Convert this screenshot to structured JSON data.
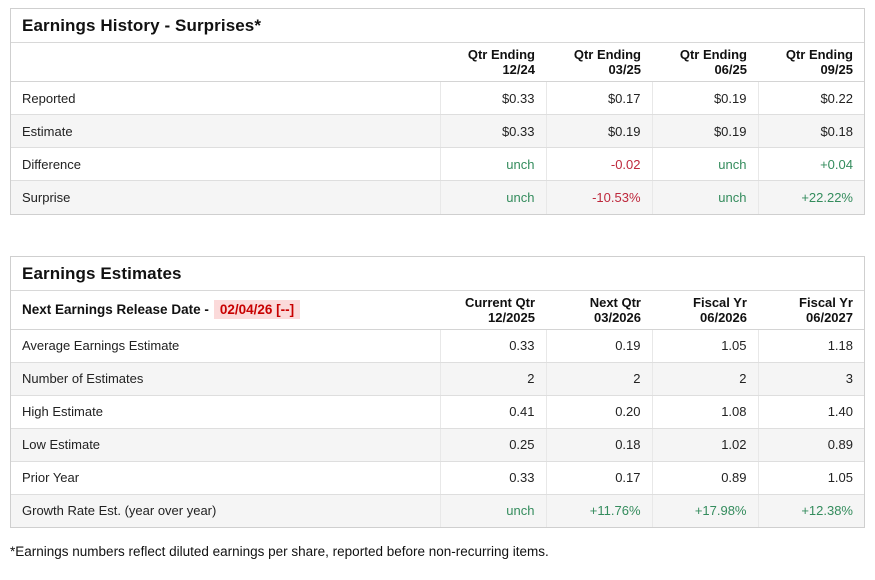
{
  "colors": {
    "green": "#348c5d",
    "red": "#be283c",
    "date_red": "#c80000",
    "date_bg": "#fbdada"
  },
  "tables": [
    {
      "title": "Earnings History - Surprises*",
      "columns": [
        [
          "Qtr Ending",
          "12/24"
        ],
        [
          "Qtr Ending",
          "03/25"
        ],
        [
          "Qtr Ending",
          "06/25"
        ],
        [
          "Qtr Ending",
          "09/25"
        ]
      ],
      "rows": [
        {
          "label": "Reported",
          "values": [
            {
              "text": "$0.33"
            },
            {
              "text": "$0.17"
            },
            {
              "text": "$0.19"
            },
            {
              "text": "$0.22"
            }
          ]
        },
        {
          "label": "Estimate",
          "values": [
            {
              "text": "$0.33"
            },
            {
              "text": "$0.19"
            },
            {
              "text": "$0.19"
            },
            {
              "text": "$0.18"
            }
          ]
        },
        {
          "label": "Difference",
          "values": [
            {
              "text": "unch",
              "tone": "green"
            },
            {
              "text": "-0.02",
              "tone": "red"
            },
            {
              "text": "unch",
              "tone": "green"
            },
            {
              "text": "+0.04",
              "tone": "green"
            }
          ]
        },
        {
          "label": "Surprise",
          "values": [
            {
              "text": "unch",
              "tone": "green"
            },
            {
              "text": "-10.53%",
              "tone": "red"
            },
            {
              "text": "unch",
              "tone": "green"
            },
            {
              "text": "+22.22%",
              "tone": "green"
            }
          ]
        }
      ]
    },
    {
      "title": "Earnings Estimates",
      "release": {
        "label": "Next Earnings Release Date -",
        "date": "02/04/26 [--]"
      },
      "columns": [
        [
          "Current Qtr",
          "12/2025"
        ],
        [
          "Next Qtr",
          "03/2026"
        ],
        [
          "Fiscal Yr",
          "06/2026"
        ],
        [
          "Fiscal Yr",
          "06/2027"
        ]
      ],
      "rows": [
        {
          "label": "Average Earnings Estimate",
          "values": [
            {
              "text": "0.33"
            },
            {
              "text": "0.19"
            },
            {
              "text": "1.05"
            },
            {
              "text": "1.18"
            }
          ]
        },
        {
          "label": "Number of Estimates",
          "values": [
            {
              "text": "2"
            },
            {
              "text": "2"
            },
            {
              "text": "2"
            },
            {
              "text": "3"
            }
          ]
        },
        {
          "label": "High Estimate",
          "values": [
            {
              "text": "0.41"
            },
            {
              "text": "0.20"
            },
            {
              "text": "1.08"
            },
            {
              "text": "1.40"
            }
          ]
        },
        {
          "label": "Low Estimate",
          "values": [
            {
              "text": "0.25"
            },
            {
              "text": "0.18"
            },
            {
              "text": "1.02"
            },
            {
              "text": "0.89"
            }
          ]
        },
        {
          "label": "Prior Year",
          "values": [
            {
              "text": "0.33"
            },
            {
              "text": "0.17"
            },
            {
              "text": "0.89"
            },
            {
              "text": "1.05"
            }
          ]
        },
        {
          "label": "Growth Rate Est. (year over year)",
          "values": [
            {
              "text": "unch",
              "tone": "green"
            },
            {
              "text": "+11.76%",
              "tone": "green"
            },
            {
              "text": "+17.98%",
              "tone": "green"
            },
            {
              "text": "+12.38%",
              "tone": "green"
            }
          ]
        }
      ]
    }
  ],
  "footnote": "*Earnings numbers reflect diluted earnings per share, reported before non-recurring items."
}
